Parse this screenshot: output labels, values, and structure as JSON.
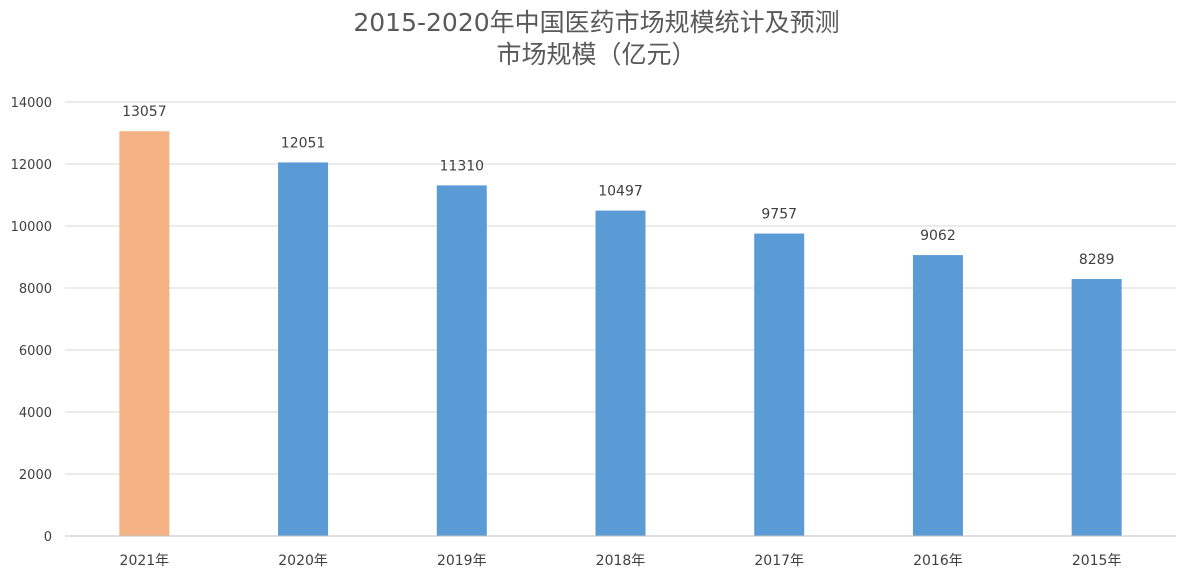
{
  "chart_data": {
    "type": "bar",
    "title": "2015-2020年中国医药市场规模统计及预测",
    "subtitle": "市场规模（亿元）",
    "categories": [
      "2021年",
      "2020年",
      "2019年",
      "2018年",
      "2017年",
      "2016年",
      "2015年"
    ],
    "values": [
      13057,
      12051,
      11310,
      10497,
      9757,
      9062,
      8289
    ],
    "data_labels": [
      "13057",
      "12051",
      "11310",
      "10497",
      "9757",
      "9062",
      "8289"
    ],
    "ylim": [
      0,
      14000
    ],
    "yticks": [
      0,
      2000,
      4000,
      6000,
      8000,
      10000,
      12000,
      14000
    ],
    "ytick_labels": [
      "0",
      "2000",
      "4000",
      "6000",
      "8000",
      "10000",
      "12000",
      "14000"
    ],
    "grid": true,
    "legend": "none",
    "colors": {
      "forecast_bar": "#F4B183",
      "bar": "#5B9BD5",
      "grid": "#D9D9D9",
      "axis": "#BFBFBF",
      "text": "#404040"
    },
    "highlight_index": 0
  }
}
